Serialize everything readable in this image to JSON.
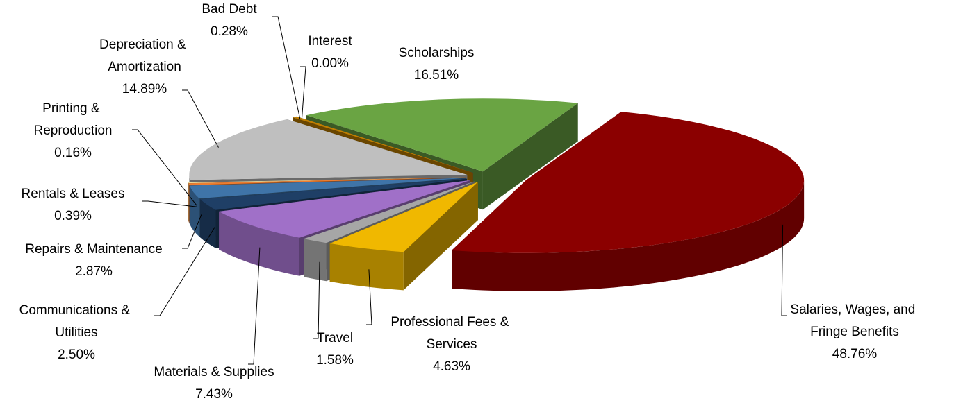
{
  "chart_data": {
    "type": "pie",
    "categories": [
      "Salaries, Wages, and Fringe Benefits",
      "Professional Fees & Services",
      "Travel",
      "Materials & Supplies",
      "Communications & Utilities",
      "Repairs & Maintenance",
      "Rentals & Leases",
      "Printing & Reproduction",
      "Depreciation & Amortization",
      "Bad Debt",
      "Interest",
      "Scholarships"
    ],
    "values": [
      48.76,
      4.63,
      1.58,
      7.43,
      2.5,
      2.87,
      0.39,
      0.16,
      14.89,
      0.28,
      0.0,
      16.51
    ],
    "value_labels": [
      "48.76%",
      "4.63%",
      "1.58%",
      "7.43%",
      "2.50%",
      "2.87%",
      "0.39%",
      "0.16%",
      "14.89%",
      "0.28%",
      "0.00%",
      "16.51%"
    ],
    "colors": [
      "#8b0000",
      "#f0b800",
      "#a6a6a6",
      "#a070c8",
      "#1f3f66",
      "#3f74a8",
      "#ed7d31",
      "#f3e3a0",
      "#bfbfbf",
      "#c07f00",
      "#4472c4",
      "#6aa443"
    ]
  }
}
